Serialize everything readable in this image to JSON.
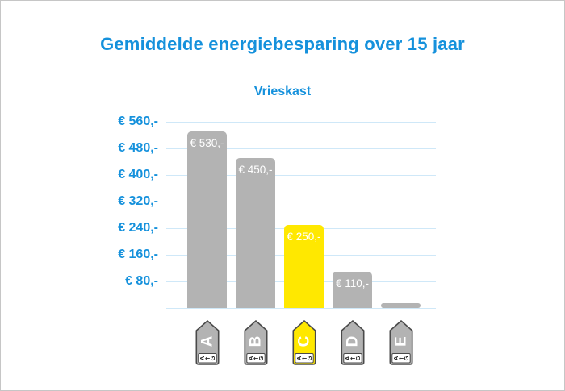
{
  "chart_data": {
    "type": "bar",
    "title": "Gemiddelde energiebesparing over 15 jaar",
    "subtitle": "Vrieskast",
    "categories": [
      "A",
      "B",
      "C",
      "D",
      "E"
    ],
    "values": [
      530,
      450,
      250,
      110,
      15
    ],
    "bar_labels": [
      "€ 530,-",
      "€ 450,-",
      "€ 250,-",
      "€ 110,-",
      ""
    ],
    "bar_colors": [
      "#b3b3b3",
      "#b3b3b3",
      "#ffe800",
      "#b3b3b3",
      "#b3b3b3"
    ],
    "highlighted_category": "C",
    "y_ticks": [
      80,
      160,
      240,
      320,
      400,
      480,
      560
    ],
    "y_tick_labels": [
      "€ 80,-",
      "€ 160,-",
      "€ 240,-",
      "€ 320,-",
      "€ 400,-",
      "€ 480,-",
      "€ 560,-"
    ],
    "ylim": [
      0,
      560
    ],
    "grid": true,
    "legend": false,
    "x_axis_icon_type": "eu-energy-label-tag",
    "icon_strip_text": "A←G"
  },
  "colors": {
    "accent_blue": "#1591dc",
    "gridline_blue": "#cfe8f8",
    "bar_gray": "#b3b3b3",
    "highlight_yellow": "#ffe800",
    "bar_label_white": "#ffffff",
    "icon_border_gray": "#4a4a4a",
    "icon_strip_text_dark": "#222222",
    "frame_border_gray": "#c6c6c6"
  }
}
